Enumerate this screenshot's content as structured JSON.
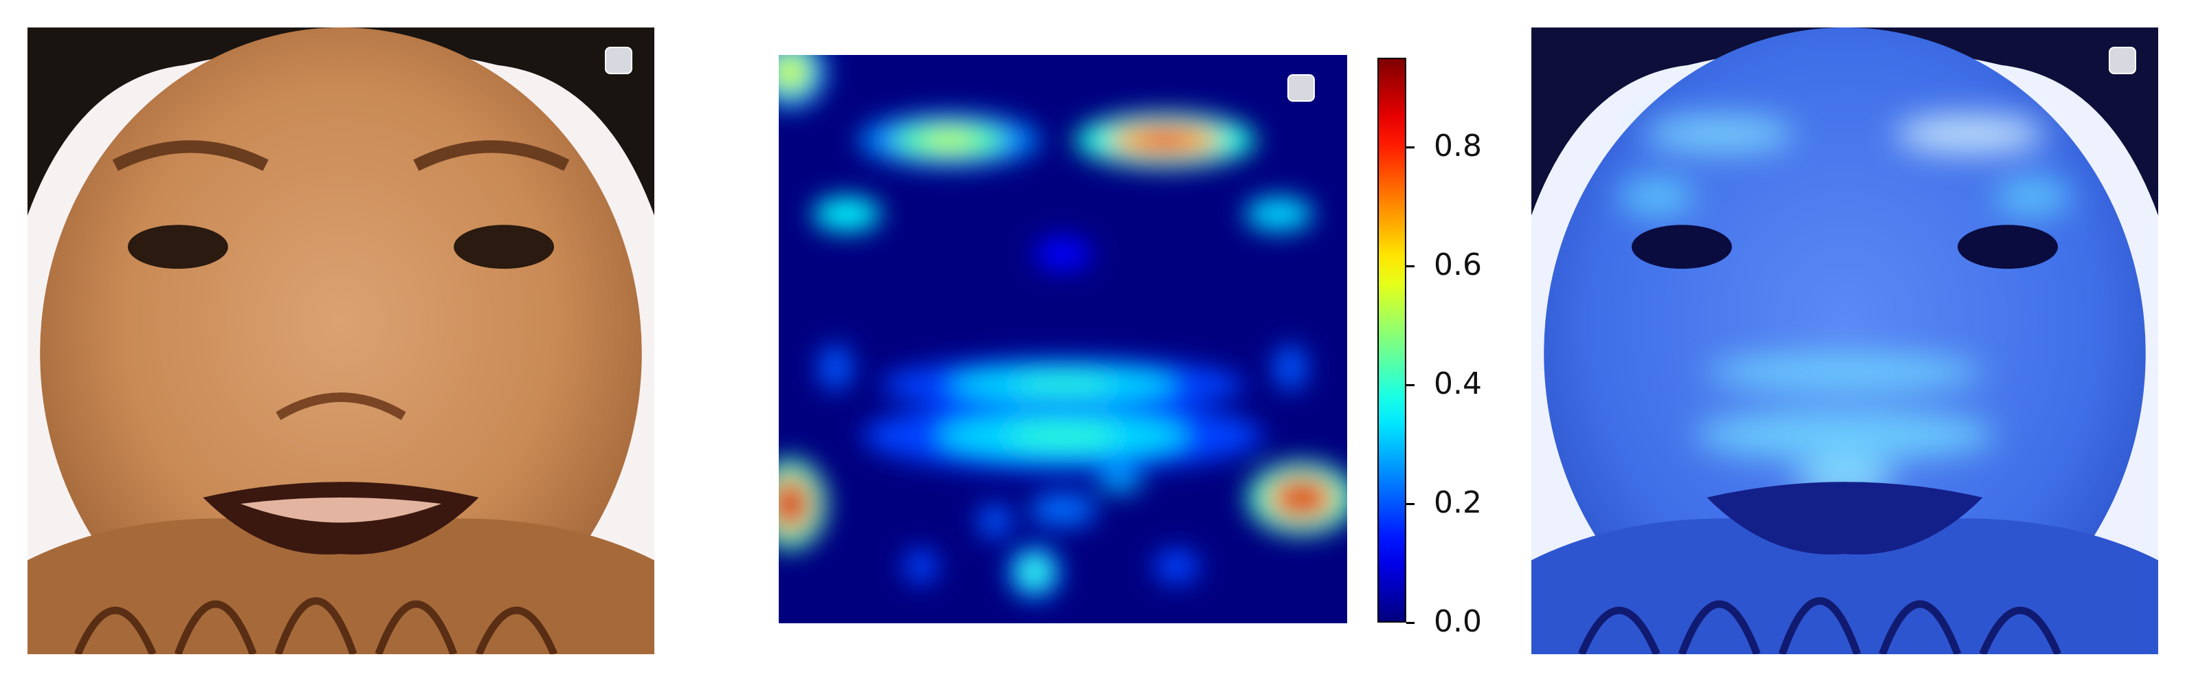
{
  "figure": {
    "panels": [
      {
        "name": "original-image",
        "description_icon": "face-photo"
      },
      {
        "name": "heatmap",
        "description_icon": "jet-heatmap"
      },
      {
        "name": "overlay-image",
        "description_icon": "face-heatmap-overlay"
      }
    ]
  },
  "colors": {
    "jet": [
      "#00007f",
      "#0000ff",
      "#007fff",
      "#00ffff",
      "#7fff7f",
      "#ffff00",
      "#ff7f00",
      "#ff0000",
      "#7f0000"
    ],
    "skin": "#c98a55",
    "hair": "#1a1410",
    "overlay_base": "#3f6fe8",
    "legend_box": "#d8d8e0"
  },
  "chart_data": {
    "type": "heatmap",
    "title": "",
    "xlabel": "",
    "ylabel": "",
    "colormap": "jet",
    "vmin": 0.0,
    "vmax": 0.95,
    "grid": false,
    "legend_placement": "top-right",
    "colorbar": {
      "ticks": [
        0.0,
        0.2,
        0.4,
        0.6,
        0.8
      ],
      "tick_labels": [
        "0.0",
        "0.2",
        "0.4",
        "0.6",
        "0.8"
      ]
    },
    "hotspots": [
      {
        "region": "left-brow",
        "value": 0.55
      },
      {
        "region": "right-brow",
        "value": 0.85
      },
      {
        "region": "left-lower-cheek",
        "value": 0.92
      },
      {
        "region": "right-lower-cheek",
        "value": 0.9
      },
      {
        "region": "top-left-corner",
        "value": 0.6
      },
      {
        "region": "mouth",
        "value": 0.4
      },
      {
        "region": "chin",
        "value": 0.45
      }
    ]
  }
}
